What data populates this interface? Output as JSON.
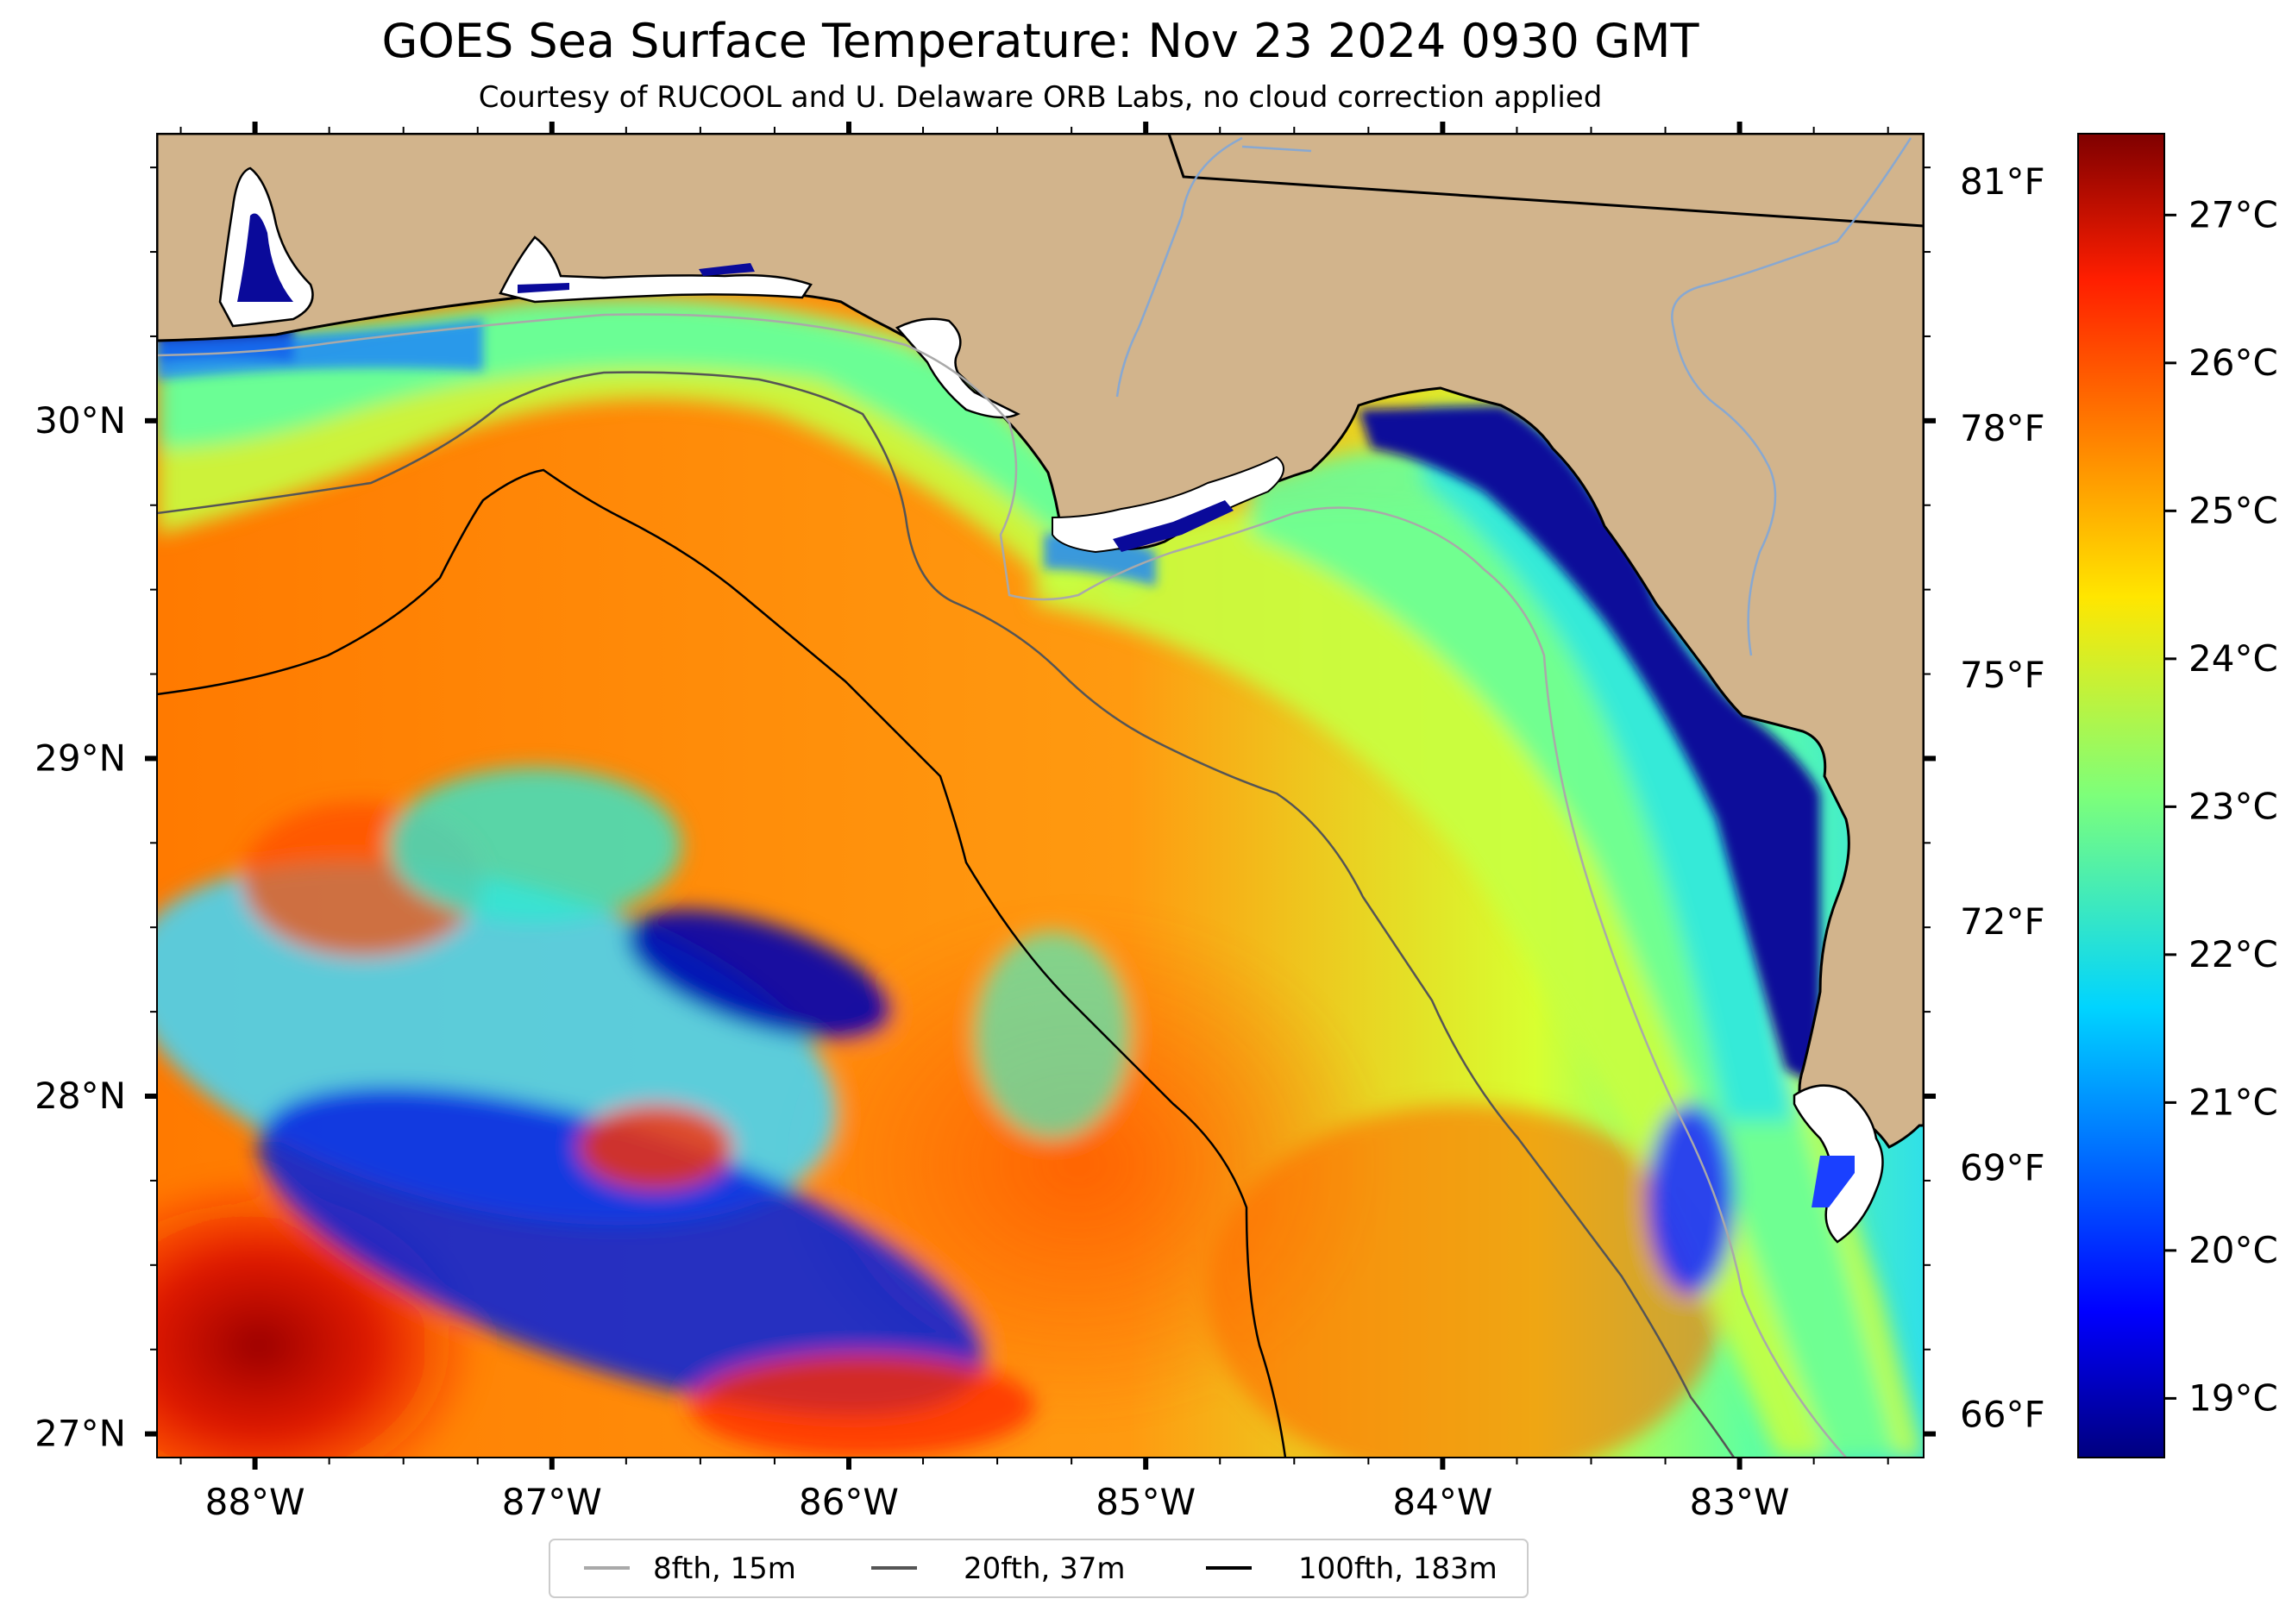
{
  "title": "GOES Sea Surface Temperature: Nov 23 2024 0930 GMT",
  "subtitle": "Courtesy of RUCOOL and U. Delaware ORB Labs, no cloud correction applied",
  "map": {
    "lon_range": [
      -88.33,
      -82.38
    ],
    "lat_range": [
      26.93,
      30.85
    ],
    "lon_ticks": [
      {
        "value": -88,
        "label": "88°W"
      },
      {
        "value": -87,
        "label": "87°W"
      },
      {
        "value": -86,
        "label": "86°W"
      },
      {
        "value": -85,
        "label": "85°W"
      },
      {
        "value": -84,
        "label": "84°W"
      },
      {
        "value": -83,
        "label": "83°W"
      }
    ],
    "lat_ticks": [
      {
        "value": 30,
        "label": "30°N"
      },
      {
        "value": 29,
        "label": "29°N"
      },
      {
        "value": 28,
        "label": "28°N"
      },
      {
        "value": 27,
        "label": "27°N"
      }
    ],
    "fahrenheit_ticks": [
      {
        "value": 81,
        "label": "81°F"
      },
      {
        "value": 78,
        "label": "78°F"
      },
      {
        "value": 75,
        "label": "75°F"
      },
      {
        "value": 72,
        "label": "72°F"
      },
      {
        "value": 69,
        "label": "69°F"
      },
      {
        "value": 66,
        "label": "66°F"
      }
    ],
    "land_color": "#d2b48c",
    "colormap": "jet"
  },
  "colorbar": {
    "min": 18.6,
    "max": 27.55,
    "ticks": [
      {
        "value": 27,
        "label": "27°C"
      },
      {
        "value": 26,
        "label": "26°C"
      },
      {
        "value": 25,
        "label": "25°C"
      },
      {
        "value": 24,
        "label": "24°C"
      },
      {
        "value": 23,
        "label": "23°C"
      },
      {
        "value": 22,
        "label": "22°C"
      },
      {
        "value": 21,
        "label": "21°C"
      },
      {
        "value": 20,
        "label": "20°C"
      },
      {
        "value": 19,
        "label": "19°C"
      }
    ]
  },
  "legend": [
    {
      "label": "8fth, 15m",
      "color": "#a9a9a9"
    },
    {
      "label": "20fth, 37m",
      "color": "#555555"
    },
    {
      "label": "100fth, 183m",
      "color": "#000000"
    }
  ]
}
